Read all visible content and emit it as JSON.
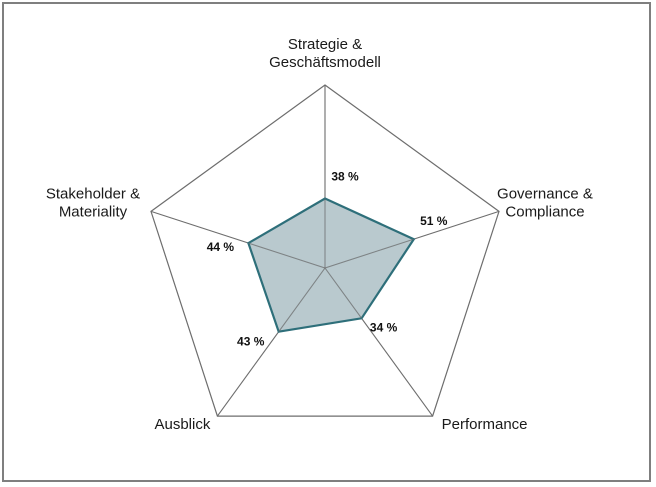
{
  "chart_data": {
    "type": "radar",
    "title": "",
    "axes": [
      {
        "label_lines": [
          "Strategie &",
          "Geschäftsmodell"
        ],
        "value": 38,
        "value_label": "38 %"
      },
      {
        "label_lines": [
          "Governance &",
          "Compliance"
        ],
        "value": 51,
        "value_label": "51 %"
      },
      {
        "label_lines": [
          "Performance"
        ],
        "value": 34,
        "value_label": "34 %"
      },
      {
        "label_lines": [
          "Ausblick"
        ],
        "value": 43,
        "value_label": "43 %"
      },
      {
        "label_lines": [
          "Stakeholder &",
          "Materiality"
        ],
        "value": 44,
        "value_label": "44 %"
      }
    ],
    "range": [
      0,
      100
    ],
    "grid": "outer-pentagon-only",
    "series_stroke": "#2e6f7a",
    "series_fill": "#adbfc6",
    "grid_color": "#6d6d6d"
  }
}
